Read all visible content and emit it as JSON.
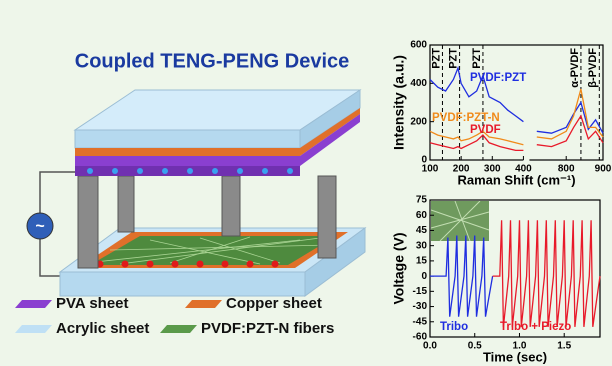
{
  "title": "Coupled TENG-PENG Device",
  "device": {
    "source_symbol": "~"
  },
  "legend": [
    {
      "label": "PVA sheet",
      "color": "#8a3fd0"
    },
    {
      "label": "Copper sheet",
      "color": "#e0702a"
    },
    {
      "label": "Acrylic sheet",
      "color": "#bfe0f5"
    },
    {
      "label": "PVDF:PZT-N fibers",
      "color": "#5a9a4a"
    }
  ],
  "chart_data": [
    {
      "type": "line",
      "xlabel": "Raman Shift (cm⁻¹)",
      "ylabel": "Intensity (a.u.)",
      "x": [
        100,
        125,
        150,
        175,
        190,
        200,
        225,
        250,
        270,
        290,
        325,
        350,
        375,
        400,
        550,
        720,
        760,
        800,
        820,
        840,
        860,
        880,
        900
      ],
      "xlim": [
        100,
        900
      ],
      "x_break": [
        400,
        700
      ],
      "xticks": [
        100,
        200,
        300,
        400,
        800,
        900
      ],
      "ylim": [
        0,
        600
      ],
      "yticks": [
        0,
        200,
        400,
        600
      ],
      "series": [
        {
          "name": "PVDF:PZT",
          "color": "#1f2ee0",
          "values": [
            420,
            380,
            360,
            420,
            480,
            400,
            330,
            360,
            440,
            330,
            300,
            260,
            230,
            200,
            null,
            150,
            140,
            170,
            240,
            300,
            160,
            210,
            140
          ]
        },
        {
          "name": "PVDF:PZT-N",
          "color": "#f08a1a",
          "values": [
            150,
            130,
            120,
            110,
            120,
            100,
            110,
            130,
            150,
            120,
            110,
            100,
            90,
            80,
            null,
            120,
            110,
            150,
            230,
            370,
            170,
            170,
            120
          ]
        },
        {
          "name": "PVDF",
          "color": "#e81a2a",
          "values": [
            90,
            80,
            70,
            60,
            70,
            60,
            80,
            100,
            130,
            90,
            70,
            60,
            50,
            50,
            null,
            80,
            70,
            100,
            170,
            230,
            110,
            150,
            90
          ]
        }
      ],
      "annotations": [
        {
          "label": "PZT",
          "x": 140
        },
        {
          "label": "PZT",
          "x": 195
        },
        {
          "label": "PZT",
          "x": 270
        },
        {
          "label": "α-PVDF",
          "x": 840
        },
        {
          "label": "β-PVDF",
          "x": 890
        }
      ]
    },
    {
      "type": "line",
      "xlabel": "Time (sec)",
      "ylabel": "Voltage (V)",
      "xlim": [
        0,
        1.9
      ],
      "xticks": [
        {
          "value": 0,
          "label": "0.0"
        },
        0.5,
        {
          "value": 1,
          "label": "1.0"
        },
        1.5
      ],
      "ylim": [
        -60,
        75
      ],
      "yticks": [
        -60,
        -45,
        -30,
        -15,
        0,
        15,
        30,
        45,
        60,
        75
      ],
      "series": [
        {
          "name": "Tribo",
          "color": "#1f2ee0",
          "x": [
            0,
            0.18,
            0.2,
            0.22,
            0.28,
            0.3,
            0.32,
            0.38,
            0.4,
            0.42,
            0.48,
            0.5,
            0.52,
            0.58,
            0.6,
            0.62,
            0.7
          ],
          "values": [
            0,
            0,
            38,
            -40,
            0,
            40,
            -40,
            0,
            40,
            -40,
            0,
            40,
            -40,
            0,
            38,
            -40,
            0
          ]
        },
        {
          "name": "Tribo + Piezo",
          "color": "#e81a2a",
          "x": [
            0.7,
            0.78,
            0.8,
            0.82,
            0.88,
            0.9,
            0.92,
            0.98,
            1.0,
            1.02,
            1.08,
            1.1,
            1.12,
            1.18,
            1.2,
            1.22,
            1.28,
            1.3,
            1.32,
            1.38,
            1.4,
            1.42,
            1.48,
            1.5,
            1.52,
            1.58,
            1.6,
            1.62,
            1.68,
            1.7,
            1.72,
            1.78,
            1.8,
            1.82,
            1.9
          ],
          "values": [
            0,
            0,
            55,
            -50,
            0,
            55,
            -50,
            0,
            55,
            -50,
            0,
            55,
            -50,
            0,
            55,
            -50,
            0,
            55,
            -50,
            0,
            55,
            -50,
            0,
            55,
            -50,
            0,
            55,
            -50,
            0,
            55,
            -50,
            0,
            55,
            -50,
            0
          ]
        }
      ]
    }
  ]
}
